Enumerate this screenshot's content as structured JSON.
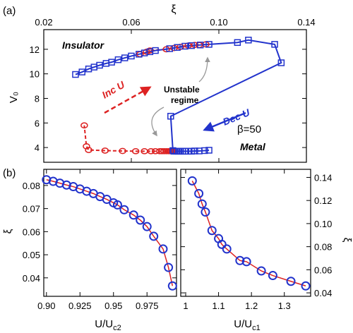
{
  "chart_data": [
    {
      "id": "a",
      "type": "line",
      "panel_label": "(a)",
      "xlabel": "ξ",
      "ylabel": "V₀",
      "xlim": [
        0.02,
        0.14
      ],
      "ylim": [
        2.8,
        13.6
      ],
      "xticks": [
        0.02,
        0.06,
        0.1,
        0.14
      ],
      "xtick_labels": [
        "0.02",
        "0.06",
        "0.10",
        "0.14"
      ],
      "yticks": [
        4,
        6,
        8,
        10,
        12
      ],
      "ytick_labels": [
        "4",
        "6",
        "8",
        "10",
        "12"
      ],
      "x_axis_position": "top",
      "grid": false,
      "series": [
        {
          "direction": "increasing U",
          "color": "#dd2222",
          "marker": "circle",
          "line": "dashed",
          "points": [
            [
              0.0385,
              5.8
            ],
            [
              0.0395,
              4.1
            ],
            [
              0.0405,
              3.8
            ],
            [
              0.048,
              3.75
            ],
            [
              0.056,
              3.72
            ],
            [
              0.062,
              3.7
            ],
            [
              0.066,
              3.7
            ],
            [
              0.069,
              3.7
            ],
            [
              0.071,
              3.7
            ],
            [
              0.073,
              3.7
            ],
            [
              0.074,
              3.7
            ],
            [
              0.075,
              3.7
            ],
            [
              0.076,
              3.7
            ],
            [
              0.077,
              3.7
            ],
            [
              0.0775,
              3.7
            ],
            [
              0.078,
              3.7
            ],
            [
              0.0785,
              3.7
            ],
            [
              0.079,
              3.7
            ]
          ],
          "jump_points": [
            [
              0.0385,
              5.8
            ],
            [
              0.0495,
              8.1
            ],
            [
              0.071,
              11.9
            ],
            [
              0.081,
              12.1
            ],
            [
              0.085,
              12.25
            ],
            [
              0.087,
              12.3
            ],
            [
              0.089,
              12.3
            ],
            [
              0.091,
              12.35
            ],
            [
              0.093,
              12.4
            ],
            [
              0.095,
              12.4
            ]
          ],
          "upper_points": [
            [
              0.064,
              11.6
            ],
            [
              0.067,
              11.8
            ],
            [
              0.0685,
              11.9
            ],
            [
              0.076,
              12.0
            ],
            [
              0.0795,
              12.1
            ],
            [
              0.0825,
              12.2
            ],
            [
              0.086,
              12.3
            ],
            [
              0.089,
              12.35
            ],
            [
              0.091,
              12.35
            ],
            [
              0.094,
              12.4
            ]
          ]
        },
        {
          "direction": "decreasing U",
          "color": "#2233cc",
          "marker": "square",
          "line": "solid",
          "points": [
            [
              0.0345,
              9.95
            ],
            [
              0.0375,
              10.15
            ],
            [
              0.0405,
              10.4
            ],
            [
              0.043,
              10.55
            ],
            [
              0.0455,
              10.7
            ],
            [
              0.0485,
              10.85
            ],
            [
              0.051,
              10.95
            ],
            [
              0.054,
              11.15
            ],
            [
              0.057,
              11.3
            ],
            [
              0.06,
              11.45
            ],
            [
              0.0635,
              11.6
            ],
            [
              0.066,
              11.7
            ],
            [
              0.0685,
              11.8
            ],
            [
              0.071,
              11.9
            ],
            [
              0.0775,
              12.05
            ],
            [
              0.081,
              12.15
            ],
            [
              0.0845,
              12.25
            ],
            [
              0.0875,
              12.3
            ],
            [
              0.0915,
              12.35
            ],
            [
              0.0955,
              12.4
            ],
            [
              0.1085,
              12.55
            ],
            [
              0.1135,
              12.75
            ],
            [
              0.1255,
              12.4
            ],
            [
              0.1285,
              10.9
            ],
            [
              0.078,
              6.55
            ],
            [
              0.079,
              3.75
            ],
            [
              0.0795,
              3.7
            ],
            [
              0.0805,
              3.7
            ],
            [
              0.0815,
              3.7
            ],
            [
              0.0825,
              3.7
            ],
            [
              0.0835,
              3.7
            ],
            [
              0.0845,
              3.7
            ],
            [
              0.086,
              3.7
            ],
            [
              0.0875,
              3.7
            ],
            [
              0.089,
              3.72
            ],
            [
              0.091,
              3.72
            ],
            [
              0.0935,
              3.75
            ],
            [
              0.0955,
              3.78
            ]
          ]
        }
      ],
      "annotations": [
        "Insulator",
        "Metal",
        "Inc U",
        "Dec U",
        "Unstable regime",
        "β=50"
      ]
    },
    {
      "id": "b-left",
      "type": "scatter",
      "panel_label": "(b)",
      "xlabel": "U/U",
      "xlabel_sub": "c2",
      "ylabel": "ξ",
      "xlim": [
        0.898,
        0.997
      ],
      "ylim": [
        0.032,
        0.087
      ],
      "xticks": [
        0.9,
        0.925,
        0.95,
        0.975
      ],
      "xtick_labels": [
        "0.90",
        "0.925",
        "0.95",
        "0.975"
      ],
      "yticks": [
        0.04,
        0.05,
        0.06,
        0.07,
        0.08
      ],
      "ytick_labels": [
        "0.04",
        "0.05",
        "0.06",
        "0.07",
        "0.08"
      ],
      "marker_color": "#2233cc",
      "fit_color": "#dd2222",
      "points": [
        [
          0.9,
          0.0825
        ],
        [
          0.905,
          0.0818
        ],
        [
          0.91,
          0.081
        ],
        [
          0.915,
          0.0802
        ],
        [
          0.92,
          0.0795
        ],
        [
          0.925,
          0.0785
        ],
        [
          0.93,
          0.0775
        ],
        [
          0.935,
          0.0765
        ],
        [
          0.94,
          0.0752
        ],
        [
          0.945,
          0.074
        ],
        [
          0.95,
          0.0725
        ],
        [
          0.953,
          0.0716
        ],
        [
          0.958,
          0.0695
        ],
        [
          0.965,
          0.0672
        ],
        [
          0.97,
          0.065
        ],
        [
          0.975,
          0.0622
        ],
        [
          0.98,
          0.058
        ],
        [
          0.987,
          0.0525
        ],
        [
          0.991,
          0.0445
        ],
        [
          0.994,
          0.0365
        ]
      ]
    },
    {
      "id": "b-right",
      "type": "scatter",
      "panel_label": "",
      "xlabel": "U/U",
      "xlabel_sub": "c1",
      "ylabel": "ξ",
      "xlim": [
        0.985,
        1.38
      ],
      "ylim": [
        0.037,
        0.147
      ],
      "xticks": [
        1.0,
        1.1,
        1.2,
        1.3
      ],
      "xtick_labels": [
        "1",
        "1.1",
        "1.2",
        "1.3"
      ],
      "yticks": [
        0.04,
        0.06,
        0.08,
        0.1,
        0.12,
        0.14
      ],
      "ytick_labels": [
        "0.04",
        "0.06",
        "0.08",
        "0.10",
        "0.12",
        "0.14"
      ],
      "y_axis_position": "right",
      "marker_color": "#2233cc",
      "fit_color": "#dd2222",
      "points": [
        [
          1.02,
          0.137
        ],
        [
          1.04,
          0.126
        ],
        [
          1.05,
          0.117
        ],
        [
          1.06,
          0.11
        ],
        [
          1.08,
          0.094
        ],
        [
          1.1,
          0.087
        ],
        [
          1.11,
          0.082
        ],
        [
          1.125,
          0.078
        ],
        [
          1.165,
          0.068
        ],
        [
          1.185,
          0.067
        ],
        [
          1.23,
          0.059
        ],
        [
          1.265,
          0.055
        ],
        [
          1.32,
          0.05
        ],
        [
          1.365,
          0.046
        ]
      ]
    }
  ],
  "labels": {
    "insulator": "Insulator",
    "metal": "Metal",
    "inc_u": "Inc U",
    "dec_u": "Dec U",
    "unstable_1": "Unstable",
    "unstable_2": "regime",
    "beta": "β=50"
  }
}
